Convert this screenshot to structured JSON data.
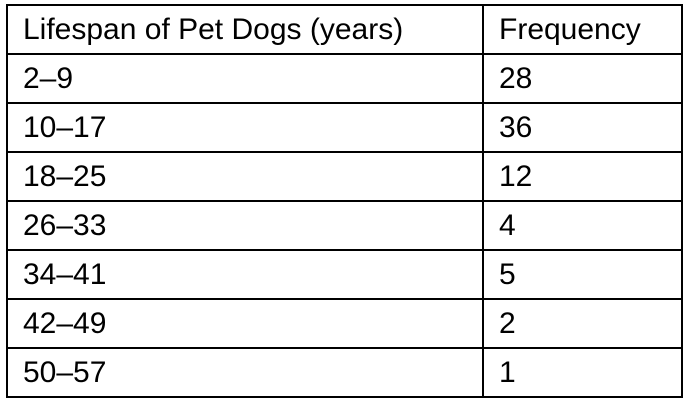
{
  "table": {
    "headers": [
      "Lifespan of Pet Dogs (years)",
      "Frequency"
    ],
    "rows": [
      [
        "2–9",
        "28"
      ],
      [
        "10–17",
        "36"
      ],
      [
        "18–25",
        "12"
      ],
      [
        "26–33",
        "4"
      ],
      [
        "34–41",
        "5"
      ],
      [
        "42–49",
        "2"
      ],
      [
        "50–57",
        "1"
      ]
    ]
  }
}
